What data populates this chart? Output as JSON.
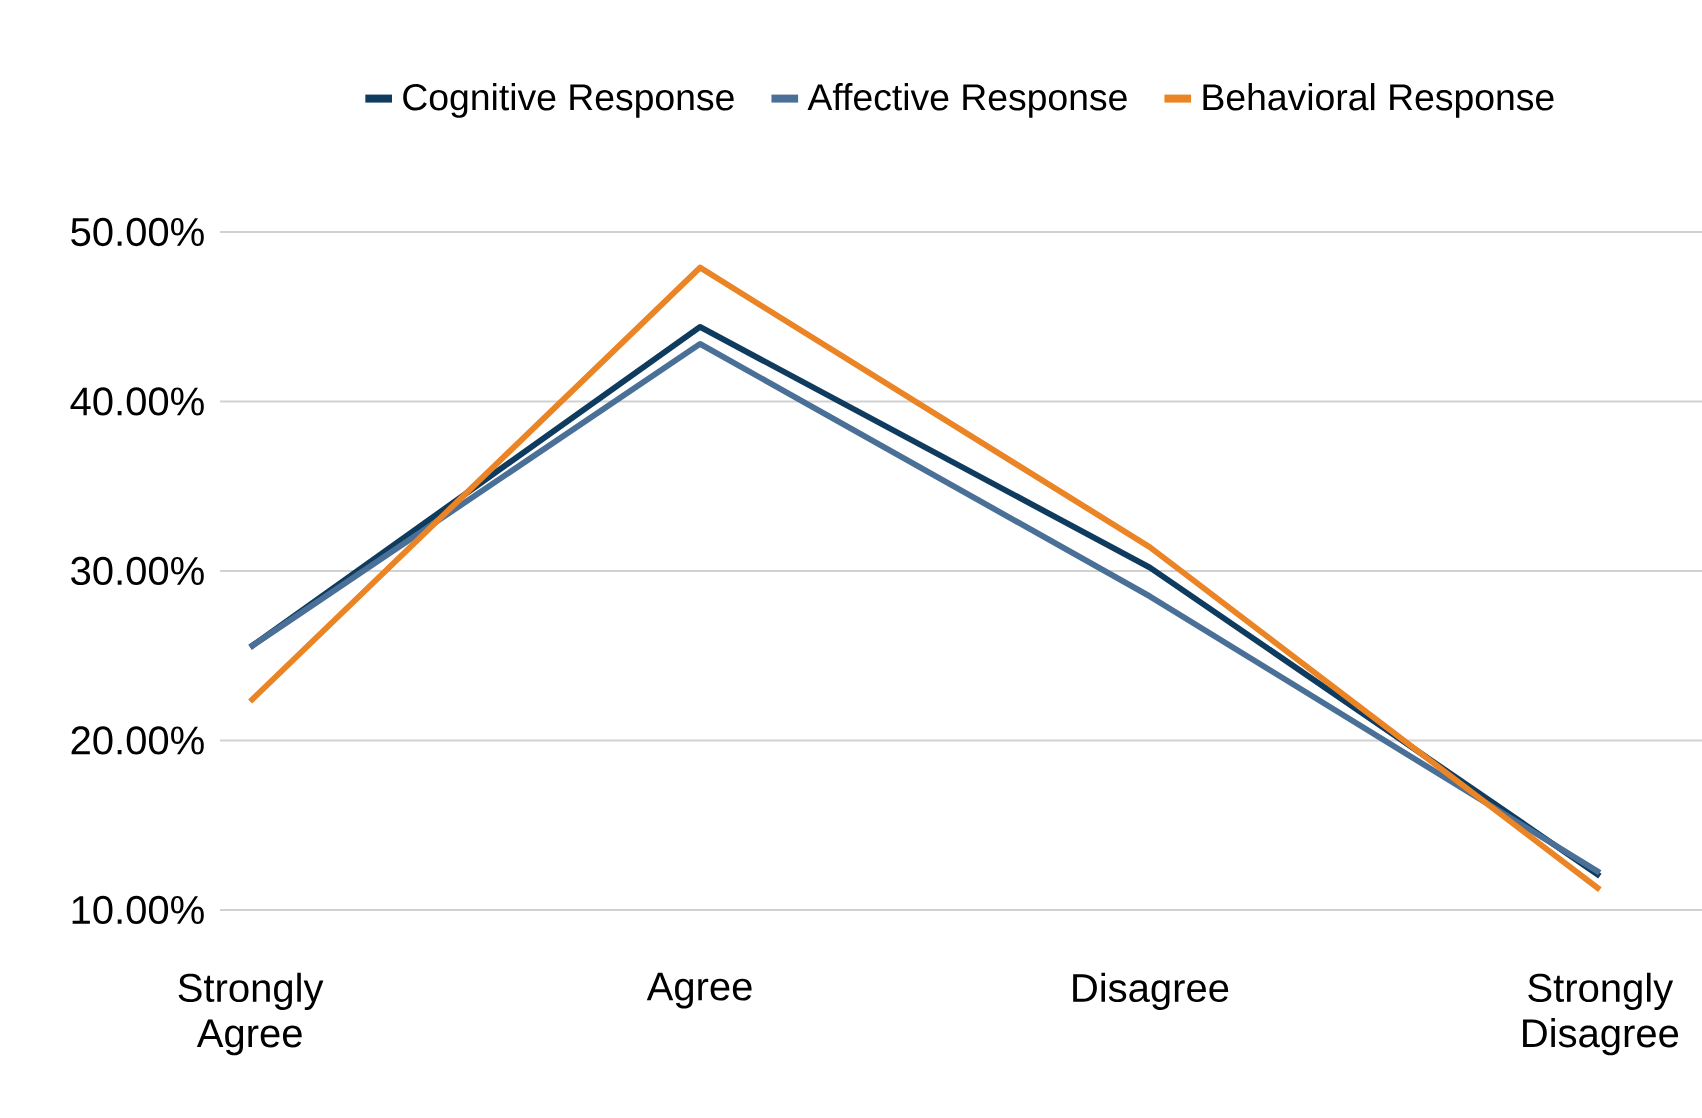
{
  "chart_data": {
    "type": "line",
    "categories": [
      "Strongly Agree",
      "Agree",
      "Disagree",
      "Strongly Disagree"
    ],
    "series": [
      {
        "name": "Cognitive Response",
        "color": "#0e3b5e",
        "values": [
          25.5,
          44.4,
          30.2,
          12.0
        ]
      },
      {
        "name": "Affective Response",
        "color": "#4b7097",
        "values": [
          25.5,
          43.4,
          28.5,
          12.2
        ]
      },
      {
        "name": "Behavioral Response",
        "color": "#ea8424",
        "values": [
          22.3,
          47.9,
          31.4,
          11.2
        ]
      }
    ],
    "ylim": [
      10,
      50
    ],
    "yticks": [
      {
        "value": 10,
        "label": "10.00%"
      },
      {
        "value": 20,
        "label": "20.00%"
      },
      {
        "value": 30,
        "label": "30.00%"
      },
      {
        "value": 40,
        "label": "40.00%"
      },
      {
        "value": 50,
        "label": "50.00%"
      }
    ],
    "grid": "y",
    "legend": "top",
    "marker": "none",
    "line_style": "solid"
  }
}
